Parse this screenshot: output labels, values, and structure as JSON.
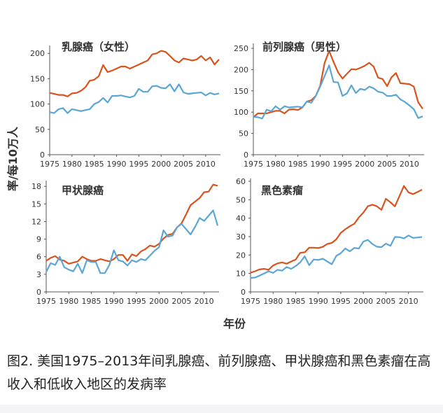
{
  "figure": {
    "ylabel": "率/每10万人",
    "xlabel": "年份",
    "colors": {
      "high_income": "#d9531e",
      "low_income": "#5aa6d6",
      "axis": "#555555",
      "text": "#333333"
    }
  },
  "caption": "图2. 美国1975–2013年间乳腺癌、前列腺癌、甲状腺癌和黑色素瘤在高收入和低收入地区的发病率",
  "chart_data": [
    {
      "type": "line",
      "title": "乳腺癌（女性）",
      "xlabel": "年份",
      "ylabel": "率/每10万人",
      "x": [
        1975,
        1976,
        1977,
        1978,
        1979,
        1980,
        1981,
        1982,
        1983,
        1984,
        1985,
        1986,
        1987,
        1988,
        1989,
        1990,
        1991,
        1992,
        1993,
        1994,
        1995,
        1996,
        1997,
        1998,
        1999,
        2000,
        2001,
        2002,
        2003,
        2004,
        2005,
        2006,
        2007,
        2008,
        2009,
        2010,
        2011,
        2012,
        2013
      ],
      "xlim": [
        1975,
        2013
      ],
      "xticks": [
        1975,
        1980,
        1985,
        1990,
        1995,
        2000,
        2005,
        2010
      ],
      "ylim": [
        0,
        210
      ],
      "yticks": [
        0,
        50,
        100,
        150,
        200
      ],
      "series": [
        {
          "name": "高收入地区",
          "color": "#d9531e",
          "values": [
            122,
            120,
            118,
            118,
            115,
            121,
            122,
            126,
            133,
            146,
            148,
            155,
            177,
            163,
            166,
            170,
            174,
            174,
            170,
            174,
            178,
            182,
            186,
            198,
            200,
            205,
            203,
            195,
            186,
            182,
            190,
            188,
            186,
            188,
            195,
            186,
            192,
            178,
            188
          ]
        },
        {
          "name": "低收入地区",
          "color": "#5aa6d6",
          "values": [
            84,
            82,
            90,
            92,
            82,
            90,
            88,
            86,
            88,
            90,
            100,
            104,
            112,
            103,
            116,
            116,
            117,
            115,
            113,
            116,
            130,
            124,
            124,
            135,
            136,
            132,
            131,
            139,
            125,
            139,
            123,
            120,
            121,
            122,
            123,
            117,
            122,
            119,
            121
          ]
        }
      ]
    },
    {
      "type": "line",
      "title": "前列腺癌（男性）",
      "x": [
        1975,
        1976,
        1977,
        1978,
        1979,
        1980,
        1981,
        1982,
        1983,
        1984,
        1985,
        1986,
        1987,
        1988,
        1989,
        1990,
        1991,
        1992,
        1993,
        1994,
        1995,
        1996,
        1997,
        1998,
        1999,
        2000,
        2001,
        2002,
        2003,
        2004,
        2005,
        2006,
        2007,
        2008,
        2009,
        2010,
        2011,
        2012,
        2013
      ],
      "xlim": [
        1975,
        2013
      ],
      "xticks": [
        1975,
        1980,
        1985,
        1990,
        1995,
        2000,
        2005,
        2010
      ],
      "ylim": [
        0,
        255
      ],
      "yticks": [
        0,
        50,
        100,
        150,
        200,
        250
      ],
      "series": [
        {
          "name": "高收入地区",
          "color": "#d9531e",
          "values": [
            88,
            97,
            97,
            97,
            100,
            103,
            103,
            97,
            106,
            107,
            105,
            111,
            125,
            128,
            138,
            162,
            216,
            244,
            218,
            194,
            179,
            190,
            201,
            200,
            204,
            209,
            216,
            207,
            181,
            178,
            161,
            182,
            192,
            168,
            167,
            166,
            160,
            123,
            108
          ]
        },
        {
          "name": "低收入地区",
          "color": "#5aa6d6",
          "values": [
            89,
            88,
            85,
            106,
            102,
            114,
            106,
            114,
            111,
            112,
            113,
            111,
            125,
            122,
            138,
            160,
            185,
            210,
            171,
            170,
            138,
            144,
            163,
            145,
            155,
            152,
            160,
            156,
            148,
            146,
            138,
            138,
            141,
            130,
            124,
            116,
            107,
            86,
            90
          ]
        }
      ]
    },
    {
      "type": "line",
      "title": "甲状腺癌",
      "x": [
        1975,
        1976,
        1977,
        1978,
        1979,
        1980,
        1981,
        1982,
        1983,
        1984,
        1985,
        1986,
        1987,
        1988,
        1989,
        1990,
        1991,
        1992,
        1993,
        1994,
        1995,
        1996,
        1997,
        1998,
        1999,
        2000,
        2001,
        2002,
        2003,
        2004,
        2005,
        2006,
        2007,
        2008,
        2009,
        2010,
        2011,
        2012,
        2013
      ],
      "xlim": [
        1975,
        2013
      ],
      "xticks": [
        1975,
        1980,
        1985,
        1990,
        1995,
        2000,
        2005,
        2010
      ],
      "ylim": [
        0,
        18.5
      ],
      "yticks": [
        0,
        3,
        6,
        9,
        12,
        15,
        18
      ],
      "series": [
        {
          "name": "高收入地区",
          "color": "#d9531e",
          "values": [
            5.3,
            5.8,
            6.1,
            5.5,
            5.3,
            4.8,
            5.0,
            5.2,
            6.0,
            5.6,
            5.3,
            5.3,
            5.6,
            5.4,
            5.2,
            5.6,
            6.3,
            6.3,
            5.3,
            6.4,
            6.1,
            6.9,
            7.3,
            7.9,
            7.7,
            8.2,
            9.1,
            9.7,
            9.9,
            11.0,
            11.7,
            13.2,
            14.8,
            15.4,
            16.0,
            17.0,
            17.1,
            18.3,
            18.1
          ]
        },
        {
          "name": "低收入地区",
          "color": "#5aa6d6",
          "values": [
            3.4,
            4.9,
            4.6,
            6.0,
            4.2,
            3.8,
            3.5,
            4.8,
            3.2,
            5.4,
            5.1,
            5.1,
            3.2,
            3.2,
            4.6,
            7.1,
            5.4,
            5.2,
            4.5,
            5.4,
            5.1,
            5.6,
            5.4,
            6.2,
            7.0,
            7.6,
            10.5,
            9.4,
            9.6,
            11.0,
            11.6,
            10.7,
            9.8,
            11.1,
            12.6,
            12.1,
            13.0,
            13.9,
            11.3
          ]
        }
      ]
    },
    {
      "type": "line",
      "title": "黑色素瘤",
      "x": [
        1975,
        1976,
        1977,
        1978,
        1979,
        1980,
        1981,
        1982,
        1983,
        1984,
        1985,
        1986,
        1987,
        1988,
        1989,
        1990,
        1991,
        1992,
        1993,
        1994,
        1995,
        1996,
        1997,
        1998,
        1999,
        2000,
        2001,
        2002,
        2003,
        2004,
        2005,
        2006,
        2007,
        2008,
        2009,
        2010,
        2011,
        2012,
        2013
      ],
      "xlim": [
        1975,
        2013
      ],
      "xticks": [
        1975,
        1980,
        1985,
        1990,
        1995,
        2000,
        2005,
        2010
      ],
      "ylim": [
        0,
        60
      ],
      "yticks": [
        0,
        10,
        20,
        30,
        40,
        50,
        60
      ],
      "series": [
        {
          "name": "高收入地区",
          "color": "#d9531e",
          "values": [
            10.4,
            11.2,
            12.2,
            12.5,
            12.0,
            14.3,
            15.5,
            16.0,
            15.3,
            16.5,
            17.5,
            21.2,
            21.5,
            24.0,
            24.0,
            23.8,
            24.4,
            26.0,
            26.6,
            28.5,
            32.0,
            34.0,
            35.6,
            37.0,
            40.4,
            43.0,
            46.5,
            47.3,
            46.5,
            44.5,
            50.5,
            48.6,
            46.4,
            52.0,
            57.5,
            54.0,
            53.0,
            54.2,
            55.5
          ]
        },
        {
          "name": "低收入地区",
          "color": "#5aa6d6",
          "values": [
            7.6,
            7.8,
            8.8,
            10.0,
            11.2,
            10.3,
            12.0,
            11.5,
            13.5,
            12.5,
            14.0,
            16.0,
            19.3,
            14.5,
            17.6,
            17.3,
            18.0,
            16.5,
            15.0,
            19.5,
            21.0,
            23.6,
            22.0,
            23.9,
            23.5,
            27.3,
            28.2,
            26.0,
            24.5,
            24.3,
            26.2,
            25.0,
            29.8,
            29.7,
            29.0,
            30.6,
            29.3,
            29.5,
            29.8
          ]
        }
      ]
    }
  ]
}
